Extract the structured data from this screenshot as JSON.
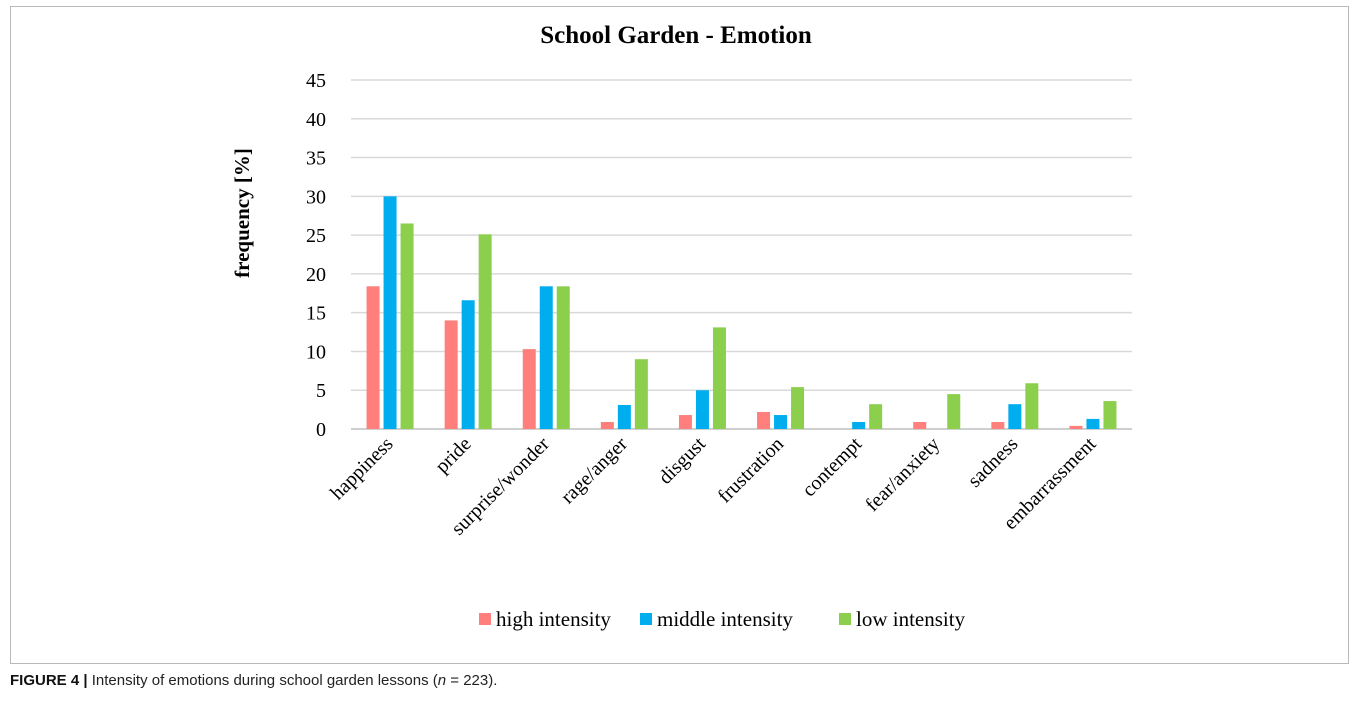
{
  "chart_data": {
    "type": "bar",
    "title": "School Garden - Emotion",
    "ylabel": "frequency [%]",
    "xlabel": "",
    "ylim": [
      0,
      45
    ],
    "yticks": [
      "0",
      "5",
      "10",
      "15",
      "20",
      "25",
      "30",
      "35",
      "40",
      "45"
    ],
    "grid": true,
    "legend_position": "bottom",
    "categories": [
      "happiness",
      "pride",
      "surprise/wonder",
      "rage/anger",
      "disgust",
      "frustration",
      "contempt",
      "fear/anxiety",
      "sadness",
      "embarrassment"
    ],
    "series": [
      {
        "name": "high intensity",
        "color": "#fe7f7b",
        "values": [
          18.4,
          14.0,
          10.3,
          0.9,
          1.8,
          2.2,
          0,
          0.9,
          0.9,
          0.4
        ]
      },
      {
        "name": "middle intensity",
        "color": "#00adef",
        "values": [
          30.0,
          16.6,
          18.4,
          3.1,
          5.0,
          1.8,
          0.9,
          0,
          3.2,
          1.3
        ]
      },
      {
        "name": "low intensity",
        "color": "#8ccf4d",
        "values": [
          26.5,
          25.1,
          18.4,
          9.0,
          13.1,
          5.4,
          3.2,
          4.5,
          5.9,
          3.6
        ]
      }
    ]
  },
  "caption": {
    "label": "FIGURE 4 |",
    "text_before": " Intensity of emotions during school garden lessons (",
    "n_symbol": "n",
    "text_after": " = 223)."
  }
}
